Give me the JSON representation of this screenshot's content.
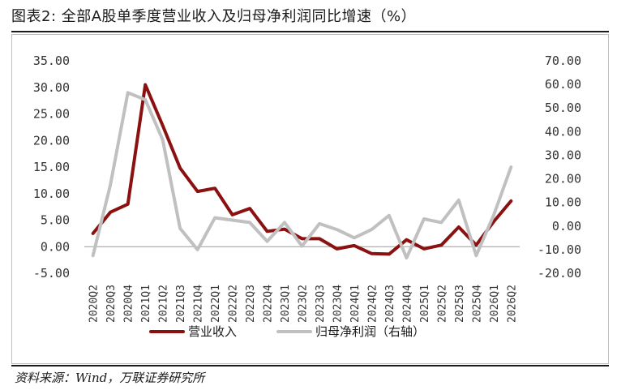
{
  "header": {
    "title": "图表2: 全部A股单季度营业收入及归母净利润同比增速（%）"
  },
  "footer": {
    "source": "资料来源：Wind，万联证券研究所"
  },
  "chart_data": {
    "type": "line",
    "categories": [
      "2020Q2",
      "2020Q3",
      "2020Q4",
      "2021Q1",
      "2021Q2",
      "2021Q3",
      "2021Q4",
      "2022Q1",
      "2022Q2",
      "2022Q3",
      "2022Q4",
      "2023Q1",
      "2023Q2",
      "2023Q3",
      "2023Q4",
      "2024Q1",
      "2024Q2",
      "2024Q3",
      "2024Q4",
      "2025Q1",
      "2025Q2",
      "2025Q3",
      "2025Q4",
      "2026Q1",
      "2026Q2"
    ],
    "series": [
      {
        "name": "营业收入",
        "axis": "left",
        "color": "#8b1010",
        "values": [
          2.5,
          6.5,
          8.0,
          30.5,
          22.8,
          14.8,
          10.4,
          11.0,
          6.0,
          7.2,
          2.9,
          3.3,
          1.5,
          1.5,
          -0.4,
          0.2,
          -1.3,
          -1.4,
          1.3,
          -0.4,
          0.3,
          3.7,
          0.3,
          4.7,
          8.6
        ]
      },
      {
        "name": "归母净利润（右轴）",
        "axis": "right",
        "color": "#c0c0c0",
        "values": [
          -12.5,
          17.5,
          56.5,
          53.5,
          36.5,
          -1.0,
          -10.0,
          3.5,
          2.5,
          1.5,
          -6.5,
          1.5,
          -8.5,
          1.0,
          -1.5,
          -5.0,
          -1.5,
          4.5,
          -13.5,
          3.0,
          1.5,
          11.0,
          -12.5,
          4.5,
          25.0
        ]
      }
    ],
    "left_axis": {
      "ylim": [
        -5,
        35
      ],
      "ticks": [
        "35.00",
        "30.00",
        "25.00",
        "20.00",
        "15.00",
        "10.00",
        "5.00",
        "0.00",
        "-5.00"
      ]
    },
    "right_axis": {
      "ylim": [
        -20,
        70
      ],
      "ticks": [
        "70.00",
        "60.00",
        "50.00",
        "40.00",
        "30.00",
        "20.00",
        "10.00",
        "0.00",
        "-10.00",
        "-20.00"
      ]
    },
    "grid": false,
    "legend_position": "bottom-center"
  }
}
